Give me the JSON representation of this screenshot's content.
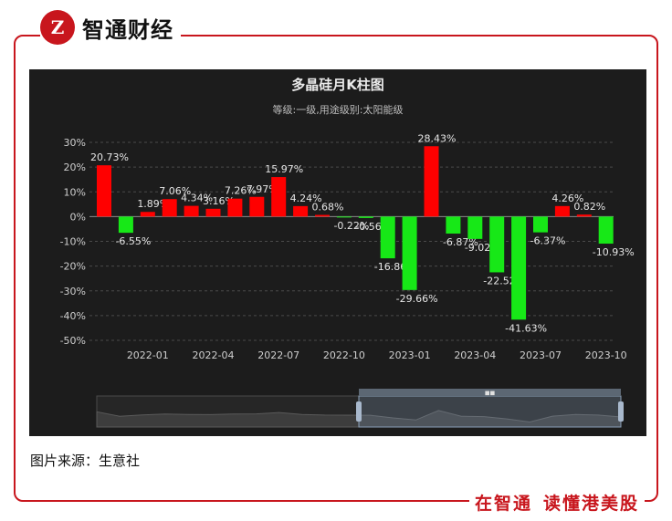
{
  "brand": {
    "logo_text": "Z",
    "name": "智通财经"
  },
  "slogan": {
    "part1": "在智通",
    "part2": "读懂港美股"
  },
  "source": "图片来源：生意社",
  "colors": {
    "positive": "#ff0000",
    "negative": "#17e817",
    "background": "#1c1c1c",
    "accent": "#c8161d"
  },
  "chart_data": {
    "type": "bar",
    "title": "多晶硅月K柱图",
    "subtitle": "等级:一级,用途级别:太阳能级",
    "ylim": [
      -50,
      30
    ],
    "yticks": [
      30,
      20,
      10,
      0,
      -10,
      -20,
      -30,
      -40,
      -50
    ],
    "ytick_labels": [
      "30%",
      "20%",
      "10%",
      "0%",
      "-10%",
      "-20%",
      "-30%",
      "-40%",
      "-50%"
    ],
    "x_labels": [
      "2022-01",
      "2022-04",
      "2022-07",
      "2022-10",
      "2023-01",
      "2023-04",
      "2023-07",
      "2023-10"
    ],
    "values": [
      20.73,
      -6.55,
      1.89,
      7.06,
      4.34,
      3.16,
      7.26,
      7.97,
      15.97,
      4.24,
      0.68,
      -0.22,
      -0.56,
      -16.86,
      -29.66,
      28.43,
      -6.87,
      -9.02,
      -22.52,
      -41.63,
      -6.37,
      4.26,
      0.82,
      -10.93
    ],
    "data_labels": [
      "20.73%",
      "-6.55%",
      "1.89%",
      "7.06%",
      "4.34%",
      "3.16%",
      "7.26%",
      "7.97%",
      "15.97%",
      "4.24%",
      "0.68%",
      "-0.22%",
      "-0.56%",
      "-16.86%",
      "-29.66%",
      "28.43%",
      "-6.87%",
      "-9.02%",
      "-22.52%",
      "-41.63%",
      "-6.37%",
      "4.26%",
      "0.82%",
      "-10.93%"
    ],
    "grid": true,
    "zoom_slider": {
      "start_fraction": 0.5,
      "end_fraction": 1.0,
      "handle_label": "■■"
    }
  }
}
